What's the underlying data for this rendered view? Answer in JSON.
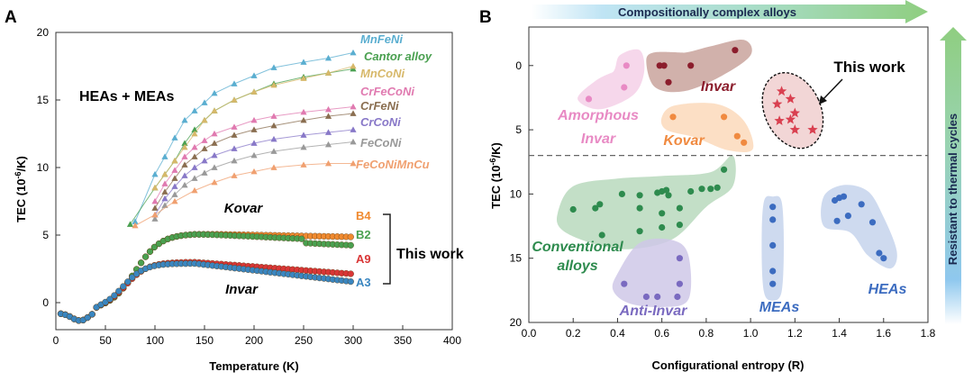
{
  "chart_data": [
    {
      "panel_label": "A",
      "type": "line",
      "xlabel": "Temperature (K)",
      "ylabel": "TEC (10",
      "ylabel_sup": "-6",
      "ylabel_tail": "/K)",
      "xlim": [
        0,
        400
      ],
      "ylim": [
        -2,
        20
      ],
      "xticks": [
        0,
        50,
        100,
        150,
        200,
        250,
        300,
        350,
        400
      ],
      "yticks": [
        0,
        5,
        10,
        15,
        20
      ],
      "group_label": "HEAs + MEAs",
      "this_work_label": "This work",
      "lit_series": [
        {
          "name": "MnFeNi",
          "color": "#5aaed0",
          "x": [
            80,
            100,
            110,
            120,
            130,
            140,
            150,
            160,
            180,
            200,
            220,
            250,
            275,
            300
          ],
          "y": [
            6.0,
            9.5,
            10.8,
            12.2,
            13.5,
            14.2,
            14.8,
            15.5,
            16.2,
            16.8,
            17.4,
            17.8,
            18.1,
            18.5
          ]
        },
        {
          "name": "Cantor alloy",
          "color": "#4aa050",
          "x": [
            75,
            100,
            110,
            120,
            130,
            140,
            150,
            160,
            180,
            200,
            220,
            250,
            275,
            300
          ],
          "y": [
            5.8,
            8.5,
            9.5,
            10.5,
            11.8,
            12.8,
            13.5,
            14.2,
            15.0,
            15.6,
            16.2,
            16.7,
            17.0,
            17.3
          ]
        },
        {
          "name": "MnCoNi",
          "color": "#d7b86a",
          "x": [
            100,
            110,
            120,
            130,
            140,
            150,
            160,
            180,
            200,
            220,
            250,
            275,
            300
          ],
          "y": [
            8.5,
            9.5,
            10.5,
            11.5,
            12.5,
            13.5,
            14.2,
            15.0,
            15.6,
            16.1,
            16.6,
            17.0,
            17.5
          ]
        },
        {
          "name": "CrFeCoNi",
          "color": "#e07ab0",
          "x": [
            100,
            110,
            120,
            130,
            140,
            150,
            160,
            180,
            200,
            220,
            250,
            275,
            300
          ],
          "y": [
            7.5,
            8.8,
            9.8,
            10.8,
            11.5,
            12.0,
            12.5,
            13.0,
            13.5,
            13.8,
            14.1,
            14.3,
            14.5
          ]
        },
        {
          "name": "CrFeNi",
          "color": "#8a6e50",
          "x": [
            100,
            110,
            120,
            130,
            140,
            150,
            160,
            180,
            200,
            220,
            250,
            275,
            300
          ],
          "y": [
            7.0,
            8.2,
            9.2,
            10.2,
            10.8,
            11.4,
            11.8,
            12.4,
            12.8,
            13.1,
            13.5,
            13.8,
            14.0
          ]
        },
        {
          "name": "CrCoNi",
          "color": "#8878c8",
          "x": [
            100,
            110,
            120,
            130,
            140,
            150,
            160,
            180,
            200,
            220,
            250,
            275,
            300
          ],
          "y": [
            6.5,
            7.7,
            8.6,
            9.4,
            10.0,
            10.5,
            10.9,
            11.4,
            11.8,
            12.1,
            12.4,
            12.6,
            12.8
          ]
        },
        {
          "name": "FeCoNi",
          "color": "#999999",
          "x": [
            100,
            110,
            120,
            130,
            140,
            150,
            160,
            180,
            200,
            220,
            250,
            275,
            300
          ],
          "y": [
            6.2,
            7.2,
            8.0,
            8.7,
            9.2,
            9.6,
            10.0,
            10.5,
            10.9,
            11.2,
            11.5,
            11.7,
            11.9
          ]
        },
        {
          "name": "FeCoNiMnCu",
          "color": "#f0a070",
          "x": [
            80,
            100,
            120,
            140,
            160,
            180,
            200,
            220,
            250,
            275,
            300
          ],
          "y": [
            5.7,
            6.5,
            7.5,
            8.3,
            8.9,
            9.4,
            9.7,
            10.0,
            10.2,
            10.3,
            10.3
          ]
        }
      ],
      "work_series": [
        {
          "name": "B4",
          "color": "#f08a30"
        },
        {
          "name": "B2",
          "color": "#4aa050"
        },
        {
          "name": "A9",
          "color": "#d93636"
        },
        {
          "name": "A3",
          "color": "#3a86c0"
        }
      ],
      "kovar_label": "Kovar",
      "invar_label": "Invar"
    },
    {
      "panel_label": "B",
      "type": "scatter",
      "xlabel": "Configurational entropy (R)",
      "ylabel": "TEC (10",
      "ylabel_sup": "-6",
      "ylabel_tail": "/K)",
      "xlim": [
        0,
        1.8
      ],
      "ylim": [
        20,
        -3
      ],
      "xticks": [
        "0.0",
        "0.2",
        "0.4",
        "0.6",
        "0.8",
        "1.0",
        "1.2",
        "1.4",
        "1.6",
        "1.8"
      ],
      "yticks": [
        0,
        5,
        10,
        15,
        20
      ],
      "threshold_y": 7,
      "top_arrow_label": "Compositionally complex alloys",
      "side_arrow_label": "Resistant to thermal cycles",
      "groups": [
        {
          "name": "Amorphous Invar",
          "line1": "Amorphous",
          "line2": "Invar",
          "color": "#e88ac4",
          "fill": "#f5d0e8",
          "points": [
            [
              0.27,
              2.6
            ],
            [
              0.43,
              1.7
            ],
            [
              0.44,
              0
            ]
          ]
        },
        {
          "name": "Invar",
          "line1": "Invar",
          "line2": "",
          "color": "#8b1d2c",
          "fill": "#c9a39c",
          "points": [
            [
              0.59,
              0
            ],
            [
              0.61,
              0
            ],
            [
              0.63,
              1.3
            ],
            [
              0.73,
              0
            ],
            [
              0.93,
              -1.2
            ]
          ]
        },
        {
          "name": "Kovar",
          "line1": "Kovar",
          "line2": "",
          "color": "#f08a40",
          "fill": "#fbd9bb",
          "points": [
            [
              0.65,
              4
            ],
            [
              0.88,
              4
            ],
            [
              0.94,
              5.5
            ],
            [
              0.97,
              6
            ]
          ]
        },
        {
          "name": "Conventional alloys",
          "line1": "Conventional",
          "line2": "alloys",
          "color": "#2e8b4e",
          "fill": "#b9d9bd",
          "points": [
            [
              0.2,
              11.2
            ],
            [
              0.3,
              11.1
            ],
            [
              0.32,
              10.8
            ],
            [
              0.33,
              13.2
            ],
            [
              0.42,
              10
            ],
            [
              0.5,
              10.1
            ],
            [
              0.5,
              11.1
            ],
            [
              0.5,
              12.9
            ],
            [
              0.58,
              9.9
            ],
            [
              0.6,
              9.8
            ],
            [
              0.6,
              11.5
            ],
            [
              0.6,
              12.6
            ],
            [
              0.62,
              9.7
            ],
            [
              0.63,
              10.1
            ],
            [
              0.68,
              11.1
            ],
            [
              0.68,
              12.4
            ],
            [
              0.73,
              9.8
            ],
            [
              0.78,
              9.6
            ],
            [
              0.82,
              9.6
            ],
            [
              0.85,
              9.5
            ],
            [
              0.88,
              8.1
            ]
          ]
        },
        {
          "name": "Anti-Invar",
          "line1": "Anti-Invar",
          "line2": "",
          "color": "#7a6ac0",
          "fill": "#cfc8e8",
          "points": [
            [
              0.43,
              17
            ],
            [
              0.53,
              18
            ],
            [
              0.58,
              18
            ],
            [
              0.67,
              18
            ],
            [
              0.68,
              17
            ],
            [
              0.68,
              15
            ]
          ]
        },
        {
          "name": "MEAs",
          "line1": "MEAs",
          "line2": "",
          "color": "#3c6cc0",
          "fill": "#c6d3ec",
          "points": [
            [
              1.1,
              11
            ],
            [
              1.1,
              12
            ],
            [
              1.1,
              14
            ],
            [
              1.1,
              16
            ],
            [
              1.1,
              17
            ]
          ]
        },
        {
          "name": "HEAs",
          "line1": "HEAs",
          "line2": "",
          "color": "#3c6cc0",
          "fill": "#c6d3ec",
          "points": [
            [
              1.38,
              10.5
            ],
            [
              1.4,
              10.3
            ],
            [
              1.42,
              10.2
            ],
            [
              1.39,
              12.1
            ],
            [
              1.44,
              11.7
            ],
            [
              1.5,
              10.8
            ],
            [
              1.55,
              12.2
            ],
            [
              1.58,
              14.6
            ],
            [
              1.6,
              15
            ]
          ]
        }
      ],
      "this_work": {
        "label": "This work",
        "color": "#d94050",
        "points": [
          [
            1.14,
            2
          ],
          [
            1.12,
            3
          ],
          [
            1.18,
            2.6
          ],
          [
            1.13,
            4.3
          ],
          [
            1.18,
            4.2
          ],
          [
            1.2,
            3.7
          ],
          [
            1.2,
            5
          ],
          [
            1.28,
            5
          ]
        ]
      }
    }
  ]
}
